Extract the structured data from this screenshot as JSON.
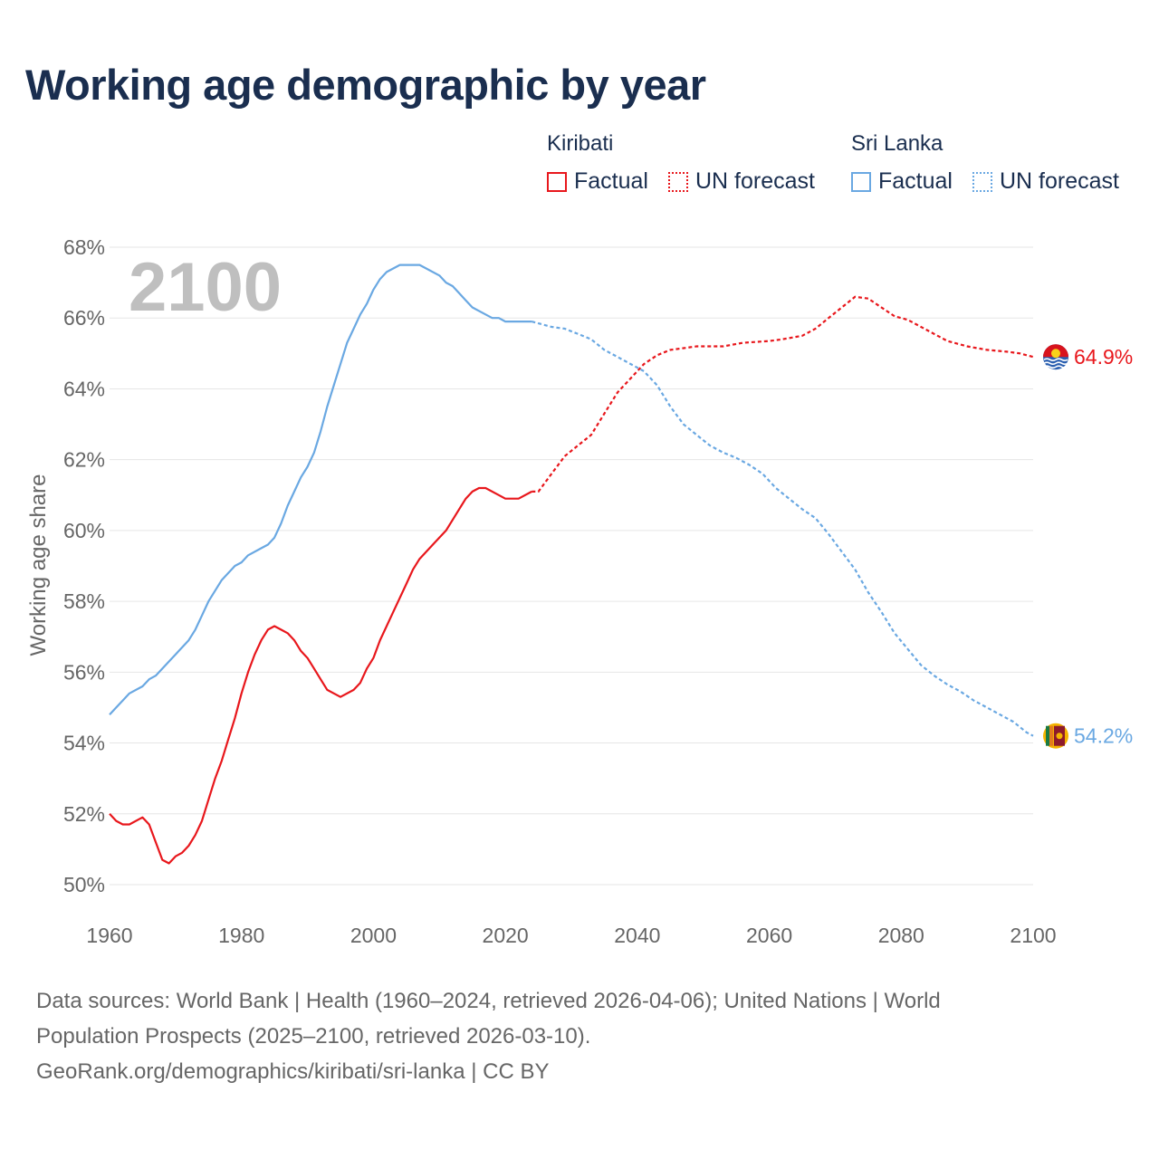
{
  "title": "Working age demographic by year",
  "year_watermark": "2100",
  "legend": {
    "kiribati": {
      "name": "Kiribati",
      "factual": "Factual",
      "forecast": "UN forecast"
    },
    "sri_lanka": {
      "name": "Sri Lanka",
      "factual": "Factual",
      "forecast": "UN forecast"
    }
  },
  "colors": {
    "kiribati": "#e8171c",
    "sri_lanka": "#6aa8e2",
    "grid": "#e6e6e6",
    "axis_text": "#666666",
    "title": "#1a2e4f"
  },
  "source": {
    "line1": "Data sources: World Bank | Health (1960–2024, retrieved 2026-04-06); United Nations | World",
    "line2": "Population Prospects (2025–2100, retrieved 2026-03-10).",
    "line3": "GeoRank.org/demographics/kiribati/sri-lanka | CC BY"
  },
  "chart_data": {
    "type": "line",
    "title": "Working age demographic by year",
    "xlabel": "",
    "ylabel": "Working age share",
    "xlim": [
      1960,
      2100
    ],
    "ylim": [
      50,
      68
    ],
    "x_ticks": [
      1960,
      1980,
      2000,
      2020,
      2040,
      2060,
      2080,
      2100
    ],
    "x_tick_labels": [
      "1960",
      "1980",
      "2000",
      "2020",
      "2040",
      "2060",
      "2080",
      "2100"
    ],
    "y_ticks": [
      50,
      52,
      54,
      56,
      58,
      60,
      62,
      64,
      66,
      68
    ],
    "y_tick_labels": [
      "50%",
      "52%",
      "54%",
      "56%",
      "58%",
      "60%",
      "62%",
      "64%",
      "66%",
      "68%"
    ],
    "grid": true,
    "factual_end_year": 2024,
    "series": [
      {
        "name": "Kiribati",
        "color": "#e8171c",
        "end_label": "64.9%",
        "points": [
          [
            1960,
            52.0
          ],
          [
            1961,
            51.8
          ],
          [
            1962,
            51.7
          ],
          [
            1963,
            51.7
          ],
          [
            1965,
            51.9
          ],
          [
            1966,
            51.7
          ],
          [
            1967,
            51.2
          ],
          [
            1968,
            50.7
          ],
          [
            1969,
            50.6
          ],
          [
            1970,
            50.8
          ],
          [
            1971,
            50.9
          ],
          [
            1972,
            51.1
          ],
          [
            1973,
            51.4
          ],
          [
            1974,
            51.8
          ],
          [
            1975,
            52.4
          ],
          [
            1976,
            53.0
          ],
          [
            1977,
            53.5
          ],
          [
            1978,
            54.1
          ],
          [
            1979,
            54.7
          ],
          [
            1980,
            55.4
          ],
          [
            1981,
            56.0
          ],
          [
            1982,
            56.5
          ],
          [
            1983,
            56.9
          ],
          [
            1984,
            57.2
          ],
          [
            1985,
            57.3
          ],
          [
            1986,
            57.2
          ],
          [
            1987,
            57.1
          ],
          [
            1988,
            56.9
          ],
          [
            1989,
            56.6
          ],
          [
            1990,
            56.4
          ],
          [
            1991,
            56.1
          ],
          [
            1992,
            55.8
          ],
          [
            1993,
            55.5
          ],
          [
            1995,
            55.3
          ],
          [
            1997,
            55.5
          ],
          [
            1998,
            55.7
          ],
          [
            1999,
            56.1
          ],
          [
            2000,
            56.4
          ],
          [
            2001,
            56.9
          ],
          [
            2003,
            57.7
          ],
          [
            2005,
            58.5
          ],
          [
            2006,
            58.9
          ],
          [
            2007,
            59.2
          ],
          [
            2009,
            59.6
          ],
          [
            2011,
            60.0
          ],
          [
            2013,
            60.6
          ],
          [
            2014,
            60.9
          ],
          [
            2015,
            61.1
          ],
          [
            2016,
            61.2
          ],
          [
            2017,
            61.2
          ],
          [
            2019,
            61.0
          ],
          [
            2020,
            60.9
          ],
          [
            2022,
            60.9
          ],
          [
            2024,
            61.1
          ],
          [
            2025,
            61.1
          ],
          [
            2027,
            61.6
          ],
          [
            2029,
            62.1
          ],
          [
            2031,
            62.4
          ],
          [
            2033,
            62.7
          ],
          [
            2035,
            63.3
          ],
          [
            2037,
            63.9
          ],
          [
            2039,
            64.3
          ],
          [
            2041,
            64.7
          ],
          [
            2043,
            64.95
          ],
          [
            2045,
            65.1
          ],
          [
            2047,
            65.15
          ],
          [
            2049,
            65.2
          ],
          [
            2053,
            65.2
          ],
          [
            2056,
            65.3
          ],
          [
            2060,
            65.35
          ],
          [
            2062,
            65.4
          ],
          [
            2065,
            65.5
          ],
          [
            2067,
            65.7
          ],
          [
            2069,
            66.0
          ],
          [
            2071,
            66.3
          ],
          [
            2073,
            66.6
          ],
          [
            2075,
            66.55
          ],
          [
            2077,
            66.3
          ],
          [
            2079,
            66.05
          ],
          [
            2081,
            65.95
          ],
          [
            2084,
            65.65
          ],
          [
            2087,
            65.35
          ],
          [
            2090,
            65.2
          ],
          [
            2093,
            65.1
          ],
          [
            2096,
            65.05
          ],
          [
            2098,
            65.0
          ],
          [
            2100,
            64.9
          ]
        ]
      },
      {
        "name": "Sri Lanka",
        "color": "#6aa8e2",
        "end_label": "54.2%",
        "points": [
          [
            1960,
            54.8
          ],
          [
            1961,
            55.0
          ],
          [
            1962,
            55.2
          ],
          [
            1963,
            55.4
          ],
          [
            1965,
            55.6
          ],
          [
            1966,
            55.8
          ],
          [
            1967,
            55.9
          ],
          [
            1968,
            56.1
          ],
          [
            1970,
            56.5
          ],
          [
            1972,
            56.9
          ],
          [
            1973,
            57.2
          ],
          [
            1974,
            57.6
          ],
          [
            1975,
            58.0
          ],
          [
            1977,
            58.6
          ],
          [
            1979,
            59.0
          ],
          [
            1980,
            59.1
          ],
          [
            1981,
            59.3
          ],
          [
            1983,
            59.5
          ],
          [
            1984,
            59.6
          ],
          [
            1985,
            59.8
          ],
          [
            1986,
            60.2
          ],
          [
            1987,
            60.7
          ],
          [
            1988,
            61.1
          ],
          [
            1989,
            61.5
          ],
          [
            1990,
            61.8
          ],
          [
            1991,
            62.2
          ],
          [
            1992,
            62.8
          ],
          [
            1993,
            63.5
          ],
          [
            1994,
            64.1
          ],
          [
            1995,
            64.7
          ],
          [
            1996,
            65.3
          ],
          [
            1997,
            65.7
          ],
          [
            1998,
            66.1
          ],
          [
            1999,
            66.4
          ],
          [
            2000,
            66.8
          ],
          [
            2001,
            67.1
          ],
          [
            2002,
            67.3
          ],
          [
            2003,
            67.4
          ],
          [
            2004,
            67.5
          ],
          [
            2007,
            67.5
          ],
          [
            2008,
            67.4
          ],
          [
            2010,
            67.2
          ],
          [
            2011,
            67.0
          ],
          [
            2012,
            66.9
          ],
          [
            2013,
            66.7
          ],
          [
            2014,
            66.5
          ],
          [
            2015,
            66.3
          ],
          [
            2017,
            66.1
          ],
          [
            2018,
            66.0
          ],
          [
            2019,
            66.0
          ],
          [
            2020,
            65.9
          ],
          [
            2024,
            65.9
          ],
          [
            2025,
            65.85
          ],
          [
            2027,
            65.75
          ],
          [
            2029,
            65.7
          ],
          [
            2031,
            65.55
          ],
          [
            2033,
            65.4
          ],
          [
            2035,
            65.1
          ],
          [
            2037,
            64.9
          ],
          [
            2039,
            64.7
          ],
          [
            2041,
            64.5
          ],
          [
            2043,
            64.1
          ],
          [
            2045,
            63.5
          ],
          [
            2047,
            63.0
          ],
          [
            2049,
            62.7
          ],
          [
            2051,
            62.4
          ],
          [
            2053,
            62.2
          ],
          [
            2055,
            62.05
          ],
          [
            2057,
            61.85
          ],
          [
            2059,
            61.6
          ],
          [
            2061,
            61.2
          ],
          [
            2063,
            60.9
          ],
          [
            2065,
            60.6
          ],
          [
            2067,
            60.35
          ],
          [
            2069,
            59.9
          ],
          [
            2071,
            59.4
          ],
          [
            2073,
            58.9
          ],
          [
            2075,
            58.25
          ],
          [
            2077,
            57.7
          ],
          [
            2079,
            57.1
          ],
          [
            2081,
            56.65
          ],
          [
            2083,
            56.2
          ],
          [
            2085,
            55.9
          ],
          [
            2087,
            55.65
          ],
          [
            2089,
            55.45
          ],
          [
            2091,
            55.2
          ],
          [
            2093,
            55.0
          ],
          [
            2095,
            54.8
          ],
          [
            2097,
            54.6
          ],
          [
            2099,
            54.3
          ],
          [
            2100,
            54.2
          ]
        ]
      }
    ]
  }
}
